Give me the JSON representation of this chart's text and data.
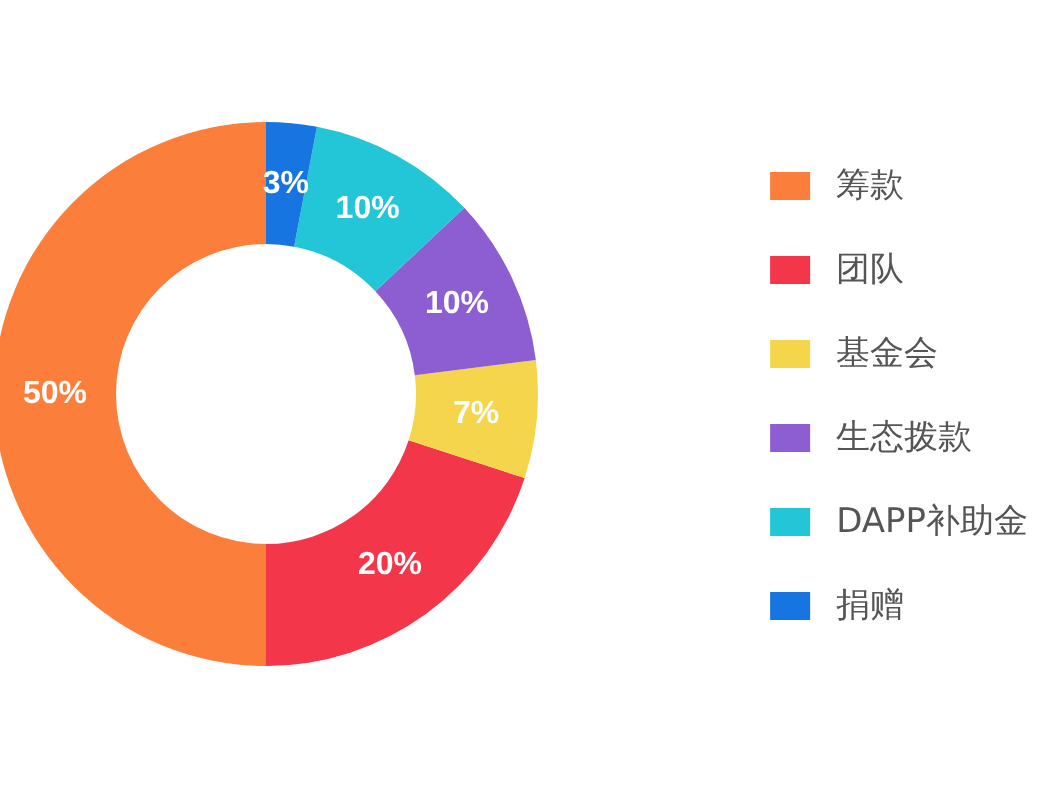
{
  "chart_data": {
    "type": "donut",
    "categories": [
      "筹款",
      "团队",
      "基金会",
      "生态拨款",
      "DAPP补助金",
      "捐赠"
    ],
    "values": [
      50,
      20,
      7,
      10,
      10,
      3
    ],
    "colors": [
      "#fb7f3b",
      "#f4364a",
      "#f5d54c",
      "#8c5ed1",
      "#22c6d6",
      "#1775e1"
    ],
    "value_labels": [
      "50%",
      "20%",
      "7%",
      "10%",
      "10%",
      "3%"
    ],
    "legend": "right"
  }
}
